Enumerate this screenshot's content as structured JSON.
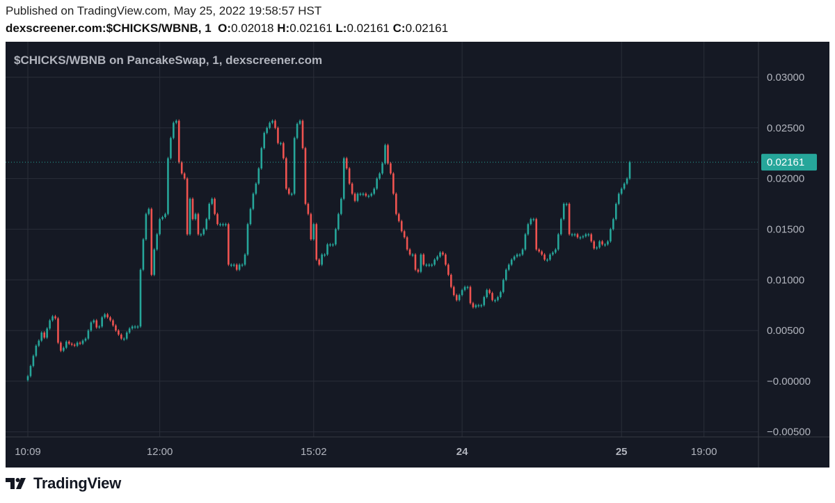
{
  "header": {
    "published": "Published on TradingView.com, May 25, 2022 19:58:57 HST",
    "symbol": "dexscreener.com:$CHICKS/WBNB, 1",
    "o_label": "O:",
    "o_value": "0.02018",
    "h_label": "H:",
    "h_value": "0.02161",
    "l_label": "L:",
    "l_value": "0.02161",
    "c_label": "C:",
    "c_value": "0.02161"
  },
  "footer": {
    "brand": "TradingView"
  },
  "colors": {
    "background": "#151924",
    "grid": "#2a2e39",
    "text": "#b2b5be",
    "up": "#26a69a",
    "down": "#ef5350",
    "price_tag": "#26a69a"
  },
  "chart_data": {
    "type": "candlestick",
    "title": "$CHICKS/WBNB on PancakeSwap, 1, dexscreener.com",
    "y_ticks": [
      "0.03000",
      "0.02500",
      "0.02000",
      "0.01500",
      "0.01000",
      "0.00500",
      "−0.00000",
      "−0.00500"
    ],
    "y_tick_values": [
      0.03,
      0.025,
      0.02,
      0.015,
      0.01,
      0.005,
      0,
      -0.005
    ],
    "ylim": [
      -0.0055,
      0.0335
    ],
    "x_ticks": [
      {
        "label": "10:09",
        "index": 0,
        "bold": false
      },
      {
        "label": "12:00",
        "index": 48,
        "bold": false
      },
      {
        "label": "15:02",
        "index": 104,
        "bold": false
      },
      {
        "label": "24",
        "index": 158,
        "bold": true
      },
      {
        "label": "25",
        "index": 216,
        "bold": true
      },
      {
        "label": "19:00",
        "index": 246,
        "bold": false
      }
    ],
    "last_price": 0.02161,
    "last_price_label": "0.02161",
    "grid": true,
    "closes": [
      0.0005,
      0.0015,
      0.0025,
      0.0035,
      0.004,
      0.0048,
      0.0043,
      0.0052,
      0.006,
      0.0064,
      0.0062,
      0.0038,
      0.003,
      0.0033,
      0.0039,
      0.0037,
      0.0036,
      0.0035,
      0.0038,
      0.0037,
      0.004,
      0.0042,
      0.005,
      0.0058,
      0.006,
      0.0053,
      0.0054,
      0.0063,
      0.0066,
      0.0063,
      0.006,
      0.0055,
      0.005,
      0.0046,
      0.0042,
      0.0042,
      0.0048,
      0.0052,
      0.0054,
      0.0054,
      0.0054,
      0.011,
      0.014,
      0.0165,
      0.017,
      0.0105,
      0.013,
      0.0145,
      0.016,
      0.0162,
      0.0165,
      0.022,
      0.024,
      0.0255,
      0.0257,
      0.0216,
      0.0205,
      0.02,
      0.0145,
      0.018,
      0.016,
      0.0165,
      0.0145,
      0.0145,
      0.015,
      0.016,
      0.0175,
      0.018,
      0.0165,
      0.0155,
      0.0155,
      0.0155,
      0.0155,
      0.0115,
      0.0115,
      0.0115,
      0.011,
      0.0115,
      0.0115,
      0.0125,
      0.0155,
      0.017,
      0.0185,
      0.0195,
      0.021,
      0.023,
      0.0245,
      0.025,
      0.0255,
      0.0257,
      0.025,
      0.0235,
      0.0235,
      0.022,
      0.019,
      0.0185,
      0.0185,
      0.024,
      0.0254,
      0.0257,
      0.023,
      0.0175,
      0.0165,
      0.014,
      0.0155,
      0.012,
      0.0115,
      0.0125,
      0.0125,
      0.0135,
      0.0135,
      0.0135,
      0.015,
      0.0165,
      0.018,
      0.022,
      0.021,
      0.0195,
      0.0185,
      0.0178,
      0.0185,
      0.0185,
      0.0185,
      0.0183,
      0.0183,
      0.0185,
      0.019,
      0.02,
      0.0205,
      0.0215,
      0.0233,
      0.0215,
      0.0205,
      0.0185,
      0.0165,
      0.0158,
      0.0148,
      0.0142,
      0.013,
      0.0125,
      0.0125,
      0.011,
      0.0108,
      0.0125,
      0.0115,
      0.0115,
      0.0115,
      0.0115,
      0.012,
      0.0123,
      0.0127,
      0.0125,
      0.0115,
      0.0105,
      0.0093,
      0.0085,
      0.008,
      0.0085,
      0.009,
      0.0093,
      0.0093,
      0.0077,
      0.0073,
      0.0075,
      0.0075,
      0.0075,
      0.0083,
      0.009,
      0.0087,
      0.008,
      0.008,
      0.0083,
      0.0088,
      0.01,
      0.011,
      0.0115,
      0.012,
      0.0123,
      0.0125,
      0.0125,
      0.013,
      0.0145,
      0.0155,
      0.016,
      0.016,
      0.013,
      0.0128,
      0.0125,
      0.012,
      0.012,
      0.0125,
      0.0127,
      0.013,
      0.0145,
      0.016,
      0.0175,
      0.0175,
      0.0145,
      0.0145,
      0.0145,
      0.0142,
      0.0142,
      0.0143,
      0.0145,
      0.0145,
      0.0138,
      0.0131,
      0.0132,
      0.0138,
      0.0135,
      0.0135,
      0.0138,
      0.015,
      0.016,
      0.0175,
      0.0185,
      0.019,
      0.0195,
      0.02,
      0.02161
    ]
  }
}
